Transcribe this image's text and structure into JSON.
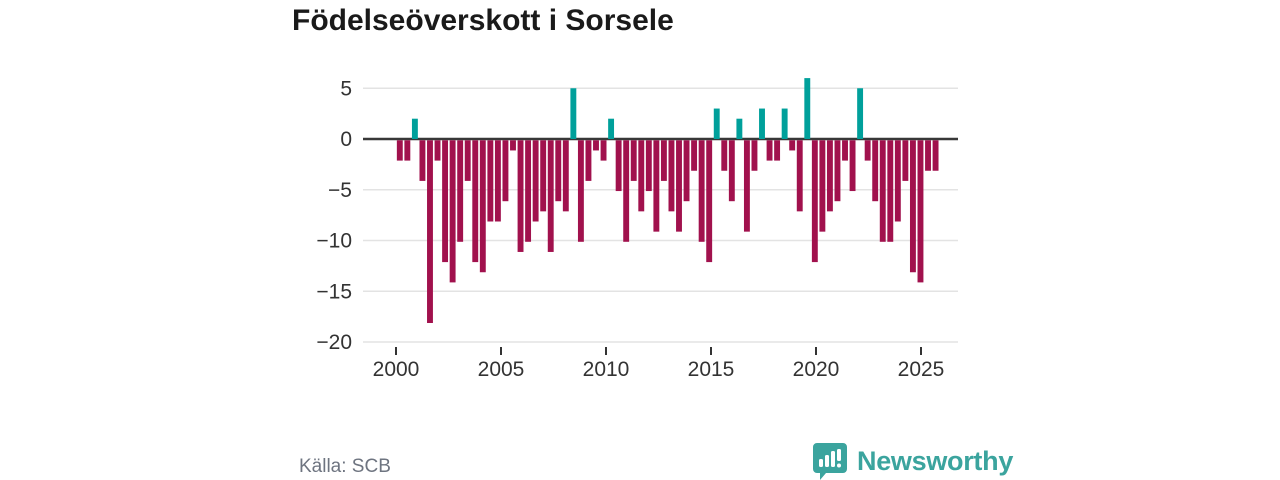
{
  "title": "Födelseöverskott i Sorsele",
  "source": "Källa: SCB",
  "logo": {
    "text": "Newsworthy"
  },
  "colors": {
    "positive_bar": "#00a09b",
    "negative_bar": "#a1114d",
    "gridline": "#e3e3e3",
    "zero_line": "#383838",
    "axis_text": "#333333",
    "tick_mark": "#333333",
    "title_text": "#1a1a1a",
    "source_text": "#6e7480",
    "logo_teal": "#3ba49e"
  },
  "chart_data": {
    "type": "bar",
    "title": "Födelseöverskott i Sorsele",
    "xlabel": "",
    "ylabel": "",
    "x_axis": {
      "tick_labels": [
        "2000",
        "2005",
        "2010",
        "2015",
        "2020",
        "2025"
      ],
      "tick_years": [
        2000,
        2005,
        2010,
        2015,
        2020,
        2025
      ],
      "start_year": 2000,
      "end_year": 2025.8
    },
    "y_axis": {
      "tick_labels": [
        "5",
        "0",
        "−5",
        "−10",
        "−15",
        "−20"
      ],
      "tick_values": [
        5,
        0,
        -5,
        -10,
        -15,
        -20
      ],
      "ylim": [
        -20.5,
        7
      ]
    },
    "grid": true,
    "legend": false,
    "series_note": "Birth surplus per sub-annual period, 2000 to mid-2025; positive values teal, negative values dark red",
    "values": [
      -2,
      -2,
      2,
      -4,
      -18,
      -2,
      -12,
      -14,
      -10,
      -4,
      -12,
      -13,
      -8,
      -8,
      -6,
      -1,
      -11,
      -10,
      -8,
      -7,
      -11,
      -6,
      -7,
      5,
      -10,
      -4,
      -1,
      -2,
      2,
      -5,
      -10,
      -4,
      -7,
      -5,
      -9,
      -4,
      -7,
      -9,
      -6,
      -3,
      -10,
      -12,
      3,
      -3,
      -6,
      2,
      -9,
      -3,
      3,
      -2,
      -2,
      3,
      -1,
      -7,
      6,
      -12,
      -9,
      -7,
      -6,
      -2,
      -5,
      5,
      -2,
      -6,
      -10,
      -10,
      -8,
      -4,
      -13,
      -14,
      -3,
      -3
    ]
  }
}
